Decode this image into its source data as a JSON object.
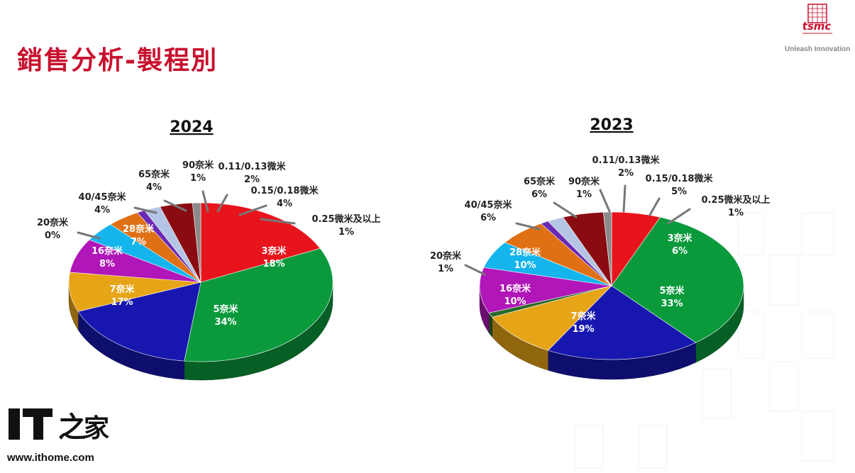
{
  "slide": {
    "title": "銷售分析-製程別",
    "logo_text": "tsmc",
    "tagline": "Unleash Innovation",
    "watermark_brand": "IT之家",
    "watermark_url": "www.ithome.com"
  },
  "colors": {
    "title": "#c8102e",
    "3nm": "#e8141c",
    "5nm": "#0a9a3c",
    "7nm": "#1717b0",
    "16nm": "#e6a417",
    "28nm": "#b016b8",
    "40_45nm": "#14b4ec",
    "65nm": "#e07014",
    "90nm": "#6a2ab4",
    "0.11_0.13um": "#b4c4e4",
    "0.15_0.18um": "#8a0c12",
    "0.25um_plus": "#8a8a8a"
  },
  "chart_data": [
    {
      "type": "pie",
      "title": "2024",
      "slices": [
        {
          "label": "3奈米",
          "value": 18,
          "pct_text": "18%"
        },
        {
          "label": "5奈米",
          "value": 34,
          "pct_text": "34%"
        },
        {
          "label": "7奈米",
          "value": 17,
          "pct_text": "17%"
        },
        {
          "label": "16奈米",
          "value": 8,
          "pct_text": "8%"
        },
        {
          "label": "20奈米",
          "value": 0,
          "pct_text": "0%"
        },
        {
          "label": "28奈米",
          "value": 7,
          "pct_text": "7%"
        },
        {
          "label": "40/45奈米",
          "value": 4,
          "pct_text": "4%"
        },
        {
          "label": "65奈米",
          "value": 4,
          "pct_text": "4%"
        },
        {
          "label": "90奈米",
          "value": 1,
          "pct_text": "1%"
        },
        {
          "label": "0.11/0.13微米",
          "value": 2,
          "pct_text": "2%"
        },
        {
          "label": "0.15/0.18微米",
          "value": 4,
          "pct_text": "4%"
        },
        {
          "label": "0.25微米及以上",
          "value": 1,
          "pct_text": "1%"
        }
      ]
    },
    {
      "type": "pie",
      "title": "2023",
      "slices": [
        {
          "label": "3奈米",
          "value": 6,
          "pct_text": "6%"
        },
        {
          "label": "5奈米",
          "value": 33,
          "pct_text": "33%"
        },
        {
          "label": "7奈米",
          "value": 19,
          "pct_text": "19%"
        },
        {
          "label": "16奈米",
          "value": 10,
          "pct_text": "10%"
        },
        {
          "label": "20奈米",
          "value": 1,
          "pct_text": "1%"
        },
        {
          "label": "28奈米",
          "value": 10,
          "pct_text": "10%"
        },
        {
          "label": "40/45奈米",
          "value": 6,
          "pct_text": "6%"
        },
        {
          "label": "65奈米",
          "value": 6,
          "pct_text": "6%"
        },
        {
          "label": "90奈米",
          "value": 1,
          "pct_text": "1%"
        },
        {
          "label": "0.11/0.13微米",
          "value": 2,
          "pct_text": "2%"
        },
        {
          "label": "0.15/0.18微米",
          "value": 5,
          "pct_text": "5%"
        },
        {
          "label": "0.25微米及以上",
          "value": 1,
          "pct_text": "1%"
        }
      ]
    }
  ]
}
